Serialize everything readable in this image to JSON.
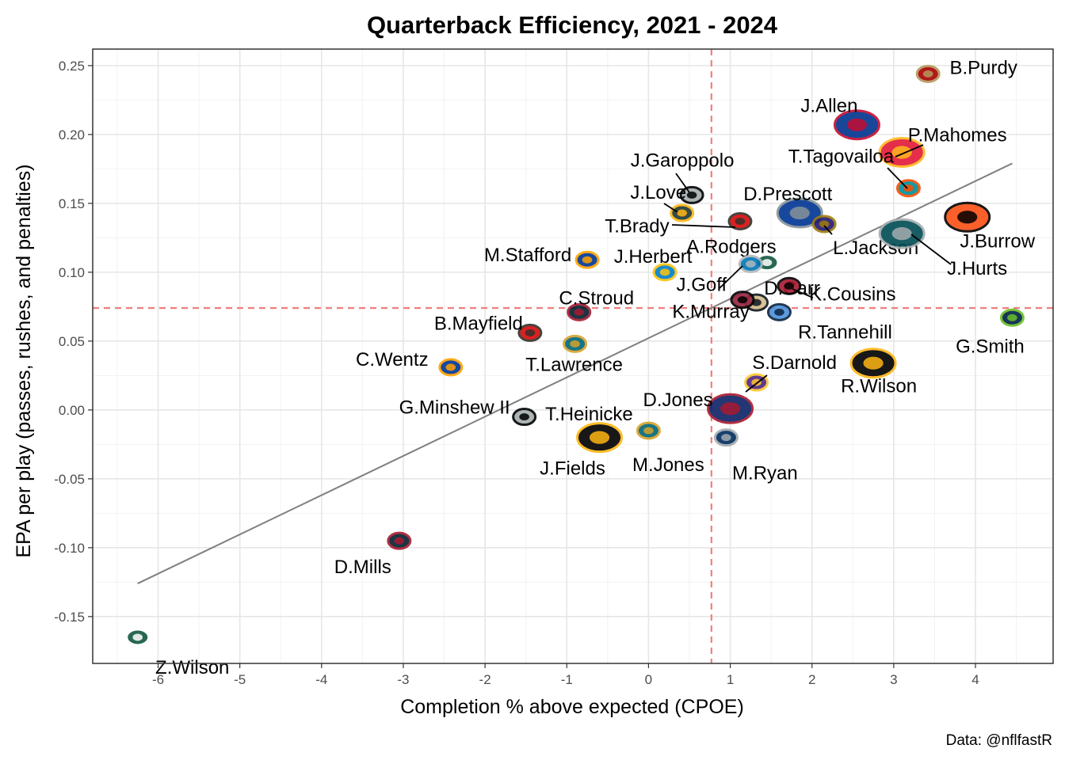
{
  "chart_data": {
    "type": "scatter",
    "title": "Quarterback Efficiency, 2021 - 2024",
    "xlabel": "Completion % above expected (CPOE)",
    "ylabel": "EPA per play (passes, rushes, and penalties)",
    "caption": "Data: @nflfastR",
    "xlim": [
      -6.8,
      4.95
    ],
    "ylim": [
      -0.184,
      0.262
    ],
    "x_ticks": [
      -6,
      -5,
      -4,
      -3,
      -2,
      -1,
      0,
      1,
      2,
      3,
      4
    ],
    "x_tick_labels": [
      "-6",
      "-5",
      "-4",
      "-3",
      "-2",
      "-1",
      "0",
      "1",
      "2",
      "3",
      "4"
    ],
    "y_ticks": [
      -0.15,
      -0.1,
      -0.05,
      0.0,
      0.05,
      0.1,
      0.15,
      0.2,
      0.25
    ],
    "y_tick_labels": [
      "-0.15",
      "-0.10",
      "-0.05",
      "0.00",
      "0.05",
      "0.10",
      "0.15",
      "0.20",
      "0.25"
    ],
    "grid": true,
    "mean_lines": {
      "x": 0.77,
      "y": 0.074,
      "color": "#f08080",
      "style": "dashed"
    },
    "trend_line": {
      "x": [
        -6.25,
        4.45
      ],
      "y": [
        -0.126,
        0.179
      ],
      "color": "#7f7f7f"
    },
    "points": [
      {
        "name": "B.Purdy",
        "team": "SF",
        "x": 3.42,
        "y": 0.244,
        "color": "#aa0000",
        "color2": "#b3995d"
      },
      {
        "name": "J.Allen",
        "team": "BUF",
        "x": 2.55,
        "y": 0.207,
        "color": "#00338d",
        "color2": "#c60c30"
      },
      {
        "name": "P.Mahomes",
        "team": "KC",
        "x": 3.1,
        "y": 0.187,
        "color": "#e31837",
        "color2": "#ffb81c"
      },
      {
        "name": "T.Tagovailoa",
        "team": "MIA",
        "x": 3.18,
        "y": 0.161,
        "color": "#008e97",
        "color2": "#fc4c02"
      },
      {
        "name": "J.Garoppolo",
        "team": "LV",
        "x": 0.53,
        "y": 0.156,
        "color": "#a5acaf",
        "color2": "#000000"
      },
      {
        "name": "J.Love",
        "team": "GB",
        "x": 0.41,
        "y": 0.143,
        "color": "#203731",
        "color2": "#ffb612"
      },
      {
        "name": "D.Prescott",
        "team": "DAL",
        "x": 1.85,
        "y": 0.143,
        "color": "#003594",
        "color2": "#869397"
      },
      {
        "name": "T.Brady",
        "team": "TB",
        "x": 1.12,
        "y": 0.137,
        "color": "#d50a0a",
        "color2": "#34302b"
      },
      {
        "name": "L.Jackson",
        "team": "BAL",
        "x": 2.15,
        "y": 0.135,
        "color": "#241773",
        "color2": "#9e7c0c"
      },
      {
        "name": "J.Burrow",
        "team": "CIN",
        "x": 3.9,
        "y": 0.14,
        "color": "#fb4f14",
        "color2": "#000000"
      },
      {
        "name": "J.Hurts",
        "team": "PHI",
        "x": 3.1,
        "y": 0.128,
        "color": "#004c54",
        "color2": "#a5acaf"
      },
      {
        "name": "A.Rodgers",
        "team": "NYJ",
        "x": 1.45,
        "y": 0.107,
        "color": "#125740",
        "color2": "#ffffff"
      },
      {
        "name": "M.Stafford",
        "team": "LA",
        "x": -0.75,
        "y": 0.109,
        "color": "#003594",
        "color2": "#ffa300"
      },
      {
        "name": "J.Herbert",
        "team": "LAC",
        "x": 0.2,
        "y": 0.1,
        "color": "#0080c6",
        "color2": "#ffc20e"
      },
      {
        "name": "J.Goff",
        "team": "DET",
        "x": 1.25,
        "y": 0.106,
        "color": "#0076b6",
        "color2": "#b0b7bc"
      },
      {
        "name": "D.Carr",
        "team": "NO",
        "x": 1.32,
        "y": 0.078,
        "color": "#d3bc8d",
        "color2": "#101820"
      },
      {
        "name": "K.Cousins",
        "team": "ATL",
        "x": 1.72,
        "y": 0.09,
        "color": "#a71930",
        "color2": "#000000"
      },
      {
        "name": "K.Murray",
        "team": "ARI",
        "x": 1.15,
        "y": 0.08,
        "color": "#97233f",
        "color2": "#000000"
      },
      {
        "name": "R.Tannehill",
        "team": "TEN",
        "x": 1.6,
        "y": 0.071,
        "color": "#4b92db",
        "color2": "#0c2340"
      },
      {
        "name": "C.Stroud",
        "team": "HOU",
        "x": -0.85,
        "y": 0.071,
        "color": "#03202f",
        "color2": "#a71930"
      },
      {
        "name": "G.Smith",
        "team": "SEA",
        "x": 4.45,
        "y": 0.067,
        "color": "#002244",
        "color2": "#69be28"
      },
      {
        "name": "B.Mayfield",
        "team": "TB",
        "x": -1.45,
        "y": 0.056,
        "color": "#d50a0a",
        "color2": "#34302b"
      },
      {
        "name": "T.Lawrence",
        "team": "JAX",
        "x": -0.9,
        "y": 0.048,
        "color": "#006778",
        "color2": "#d7a22a"
      },
      {
        "name": "C.Wentz",
        "team": "LA",
        "x": -2.42,
        "y": 0.031,
        "color": "#003594",
        "color2": "#ffa300"
      },
      {
        "name": "R.Wilson",
        "team": "PIT",
        "x": 2.75,
        "y": 0.034,
        "color": "#000000",
        "color2": "#ffb612"
      },
      {
        "name": "S.Darnold",
        "team": "MIN",
        "x": 1.32,
        "y": 0.02,
        "color": "#4f2683",
        "color2": "#ffc62f"
      },
      {
        "name": "D.Jones",
        "team": "NYG",
        "x": 1.0,
        "y": 0.001,
        "color": "#0b2265",
        "color2": "#a71930"
      },
      {
        "name": "G.Minshew II",
        "team": "LV",
        "x": -1.52,
        "y": -0.005,
        "color": "#a5acaf",
        "color2": "#000000"
      },
      {
        "name": "T.Heinicke",
        "team": "",
        "x": 0.0,
        "y": 0.0,
        "color": "#000000",
        "color2": "#000000"
      },
      {
        "name": "J.Fields",
        "team": "PIT",
        "x": -0.6,
        "y": -0.02,
        "color": "#000000",
        "color2": "#ffb612"
      },
      {
        "name": "M.Jones",
        "team": "JAX",
        "x": 0.0,
        "y": -0.015,
        "color": "#006778",
        "color2": "#d7a22a"
      },
      {
        "name": "M.Ryan",
        "team": "IND",
        "x": 0.95,
        "y": -0.02,
        "color": "#002c5f",
        "color2": "#a2aaad"
      },
      {
        "name": "D.Mills",
        "team": "HOU",
        "x": -3.05,
        "y": -0.095,
        "color": "#03202f",
        "color2": "#a71930"
      },
      {
        "name": "Z.Wilson",
        "team": "NYJ",
        "x": -6.25,
        "y": -0.165,
        "color": "#125740",
        "color2": "#ffffff"
      }
    ]
  }
}
